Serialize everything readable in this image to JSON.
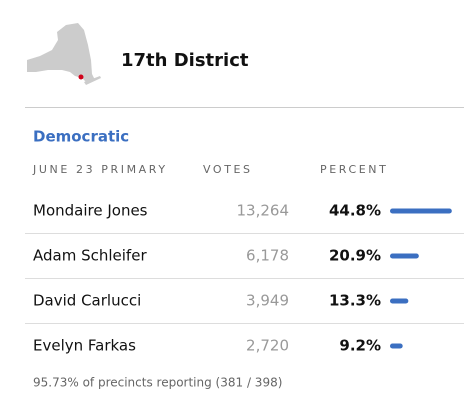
{
  "header": {
    "title": "17th District"
  },
  "table": {
    "party": "Democratic",
    "columns": [
      "JUNE 23 PRIMARY",
      "VOTES",
      "PERCENT"
    ],
    "rows": [
      {
        "candidate": "Mondaire Jones",
        "votes": "13,264",
        "percent": 44.8,
        "percent_label": "44.8%"
      },
      {
        "candidate": "Adam Schleifer",
        "votes": "6,178",
        "percent": 20.9,
        "percent_label": "20.9%"
      },
      {
        "candidate": "David Carlucci",
        "votes": "3,949",
        "percent": 13.3,
        "percent_label": "13.3%"
      },
      {
        "candidate": "Evelyn Farkas",
        "votes": "2,720",
        "percent": 9.2,
        "percent_label": "9.2%"
      }
    ],
    "bar_color": "#3b6fc1"
  },
  "footer": "95.73% of precincts reporting (381 / 398)"
}
